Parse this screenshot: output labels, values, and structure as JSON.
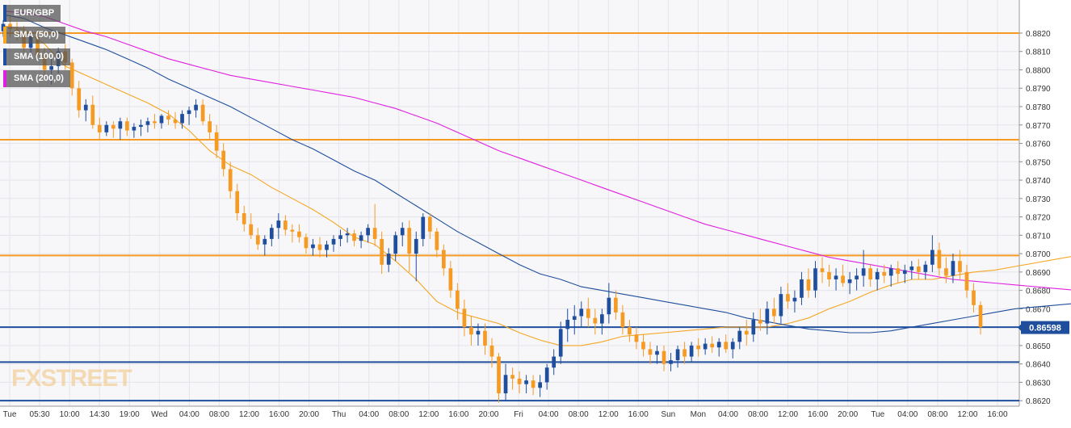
{
  "chart_data": {
    "type": "candlestick",
    "symbol": "EUR/GBP",
    "ylim": [
      0.8617,
      0.8838
    ],
    "y_ticks": [
      "0.8620",
      "0.8630",
      "0.8640",
      "0.8650",
      "0.8660",
      "0.8670",
      "0.8680",
      "0.8690",
      "0.8700",
      "0.8710",
      "0.8720",
      "0.8730",
      "0.8740",
      "0.8750",
      "0.8760",
      "0.8770",
      "0.8780",
      "0.8790",
      "0.8800",
      "0.8810",
      "0.8820"
    ],
    "x_ticks": [
      "Tue",
      "05:30",
      "10:00",
      "14:30",
      "19:00",
      "Wed",
      "04:00",
      "08:00",
      "12:00",
      "16:00",
      "20:00",
      "Thu",
      "04:00",
      "08:00",
      "12:00",
      "16:00",
      "20:00",
      "Fri",
      "04:00",
      "08:00",
      "12:00",
      "16:00",
      "Sun",
      "Mon",
      "04:00",
      "08:00",
      "12:00",
      "16:00",
      "20:00",
      "Tue",
      "04:00",
      "08:00",
      "12:00",
      "16:00"
    ],
    "current_price": "0.86598",
    "levels": [
      {
        "name": "resistance",
        "value": 0.882
      },
      {
        "name": "resistance",
        "value": 0.8762
      },
      {
        "name": "resistance",
        "value": 0.8699
      },
      {
        "name": "support",
        "value": 0.866
      },
      {
        "name": "support",
        "value": 0.8641
      },
      {
        "name": "support",
        "value": 0.862
      }
    ],
    "legend": [
      {
        "label": "EUR/GBP",
        "color": "#1f4e9c"
      },
      {
        "label": "SMA (50,0)",
        "color": "#f5a623"
      },
      {
        "label": "SMA (100,0)",
        "color": "#1f4e9c"
      },
      {
        "label": "SMA (200,0)",
        "color": "#e020e0"
      }
    ],
    "series": [
      {
        "name": "SMA (50,0)",
        "x": [
          0,
          3,
          6,
          9,
          12,
          15,
          18,
          21,
          24,
          27,
          30,
          33,
          36,
          39,
          42,
          45,
          48,
          51,
          54,
          57,
          60,
          63,
          66,
          69,
          72,
          75,
          78,
          81,
          84,
          87,
          90,
          93,
          96,
          99,
          102,
          105,
          108,
          111,
          114,
          117,
          120,
          123,
          126,
          129,
          132,
          135,
          138,
          141,
          144,
          147,
          150,
          153,
          156,
          159
        ],
        "values": [
          0.8824,
          0.8822,
          0.8814,
          0.8802,
          0.8797,
          0.8792,
          0.8787,
          0.8782,
          0.8776,
          0.8767,
          0.8756,
          0.8748,
          0.8743,
          0.8736,
          0.873,
          0.8724,
          0.8717,
          0.8709,
          0.8705,
          0.8696,
          0.8686,
          0.8674,
          0.8668,
          0.8665,
          0.8662,
          0.8657,
          0.8653,
          0.865,
          0.865,
          0.8652,
          0.8655,
          0.8656,
          0.8657,
          0.8658,
          0.8659,
          0.866,
          0.866,
          0.866,
          0.8662,
          0.8665,
          0.867,
          0.8674,
          0.8679,
          0.8683,
          0.8686,
          0.8686,
          0.8688,
          0.869,
          0.8691,
          0.8693,
          0.8695,
          0.8697,
          0.8699,
          0.8698
        ]
      },
      {
        "name": "SMA (100,0)",
        "x": [
          0,
          3,
          6,
          9,
          12,
          15,
          18,
          21,
          24,
          27,
          30,
          33,
          36,
          39,
          42,
          45,
          48,
          51,
          54,
          57,
          60,
          63,
          66,
          69,
          72,
          75,
          78,
          81,
          84,
          87,
          90,
          93,
          96,
          99,
          102,
          105,
          108,
          111,
          114,
          117,
          120,
          123,
          126,
          129,
          132,
          135,
          138,
          141,
          144,
          147,
          150,
          153,
          156,
          159
        ],
        "values": [
          0.883,
          0.8828,
          0.8823,
          0.8819,
          0.8815,
          0.8811,
          0.8806,
          0.8801,
          0.8795,
          0.879,
          0.8785,
          0.878,
          0.8774,
          0.8768,
          0.8762,
          0.8757,
          0.8751,
          0.8745,
          0.874,
          0.8733,
          0.8726,
          0.8719,
          0.8712,
          0.8706,
          0.87,
          0.8694,
          0.8689,
          0.8686,
          0.8682,
          0.868,
          0.8678,
          0.8676,
          0.8674,
          0.8672,
          0.867,
          0.8668,
          0.8665,
          0.8663,
          0.8661,
          0.8659,
          0.8658,
          0.8657,
          0.8657,
          0.8658,
          0.866,
          0.8662,
          0.8664,
          0.8666,
          0.8668,
          0.867,
          0.8671,
          0.8672,
          0.8673,
          0.8672
        ]
      },
      {
        "name": "SMA (200,0)",
        "x": [
          0,
          3,
          6,
          9,
          12,
          15,
          18,
          21,
          24,
          27,
          30,
          33,
          36,
          39,
          42,
          45,
          48,
          51,
          54,
          57,
          60,
          63,
          66,
          69,
          72,
          75,
          78,
          81,
          84,
          87,
          90,
          93,
          96,
          99,
          102,
          105,
          108,
          111,
          114,
          117,
          120,
          123,
          126,
          129,
          132,
          135,
          138,
          141,
          144,
          147,
          150,
          153,
          156,
          159
        ],
        "values": [
          0.8832,
          0.8831,
          0.8829,
          0.8825,
          0.8821,
          0.8818,
          0.8814,
          0.881,
          0.8806,
          0.8803,
          0.88,
          0.8797,
          0.8795,
          0.8793,
          0.8791,
          0.8789,
          0.8787,
          0.8785,
          0.8782,
          0.8779,
          0.8775,
          0.8771,
          0.8766,
          0.8761,
          0.8756,
          0.8752,
          0.8748,
          0.8744,
          0.874,
          0.8736,
          0.8732,
          0.8728,
          0.8724,
          0.872,
          0.8716,
          0.8713,
          0.871,
          0.8707,
          0.8704,
          0.8701,
          0.8698,
          0.8696,
          0.8694,
          0.8692,
          0.869,
          0.8688,
          0.8686,
          0.8685,
          0.8684,
          0.8683,
          0.8682,
          0.8681,
          0.868,
          0.8679
        ]
      }
    ],
    "candles": [
      [
        0.8821,
        0.8827,
        0.8818,
        0.8825
      ],
      [
        0.8825,
        0.8829,
        0.8818,
        0.8822
      ],
      [
        0.8822,
        0.8826,
        0.8816,
        0.882
      ],
      [
        0.882,
        0.8824,
        0.881,
        0.8812
      ],
      [
        0.8812,
        0.882,
        0.8808,
        0.8818
      ],
      [
        0.8818,
        0.8822,
        0.8806,
        0.8808
      ],
      [
        0.8808,
        0.8812,
        0.8796,
        0.88
      ],
      [
        0.88,
        0.8806,
        0.8792,
        0.8802
      ],
      [
        0.8802,
        0.8812,
        0.8798,
        0.881
      ],
      [
        0.881,
        0.8814,
        0.88,
        0.8804
      ],
      [
        0.8804,
        0.8806,
        0.8786,
        0.879
      ],
      [
        0.879,
        0.8794,
        0.8774,
        0.8778
      ],
      [
        0.8778,
        0.8784,
        0.8772,
        0.8781
      ],
      [
        0.8781,
        0.8786,
        0.8768,
        0.877
      ],
      [
        0.877,
        0.8774,
        0.8762,
        0.8766
      ],
      [
        0.8766,
        0.8772,
        0.8764,
        0.877
      ],
      [
        0.877,
        0.8772,
        0.8763,
        0.8768
      ],
      [
        0.8768,
        0.8774,
        0.8762,
        0.8772
      ],
      [
        0.8772,
        0.8774,
        0.8764,
        0.8767
      ],
      [
        0.8767,
        0.8771,
        0.8763,
        0.8769
      ],
      [
        0.8769,
        0.8773,
        0.8764,
        0.877
      ],
      [
        0.877,
        0.8774,
        0.8766,
        0.8772
      ],
      [
        0.8772,
        0.8776,
        0.8768,
        0.8771
      ],
      [
        0.8771,
        0.8776,
        0.8768,
        0.8775
      ],
      [
        0.8775,
        0.8778,
        0.877,
        0.8773
      ],
      [
        0.8773,
        0.8777,
        0.8768,
        0.8771
      ],
      [
        0.8771,
        0.8778,
        0.8768,
        0.8776
      ],
      [
        0.8776,
        0.878,
        0.877,
        0.8778
      ],
      [
        0.8778,
        0.8784,
        0.8774,
        0.8781
      ],
      [
        0.8781,
        0.8784,
        0.877,
        0.8772
      ],
      [
        0.8772,
        0.8776,
        0.8762,
        0.8766
      ],
      [
        0.8766,
        0.877,
        0.8752,
        0.8756
      ],
      [
        0.8756,
        0.876,
        0.8742,
        0.8746
      ],
      [
        0.8746,
        0.875,
        0.873,
        0.8734
      ],
      [
        0.8734,
        0.8738,
        0.8718,
        0.8722
      ],
      [
        0.8722,
        0.8726,
        0.8712,
        0.8716
      ],
      [
        0.8716,
        0.8722,
        0.8708,
        0.871
      ],
      [
        0.871,
        0.8714,
        0.8702,
        0.8705
      ],
      [
        0.8705,
        0.871,
        0.8699,
        0.8708
      ],
      [
        0.8708,
        0.8716,
        0.8704,
        0.8714
      ],
      [
        0.8714,
        0.8722,
        0.8708,
        0.8718
      ],
      [
        0.8718,
        0.8721,
        0.871,
        0.8713
      ],
      [
        0.8713,
        0.8716,
        0.8706,
        0.8712
      ],
      [
        0.8712,
        0.8716,
        0.8706,
        0.8709
      ],
      [
        0.8709,
        0.8711,
        0.87,
        0.8703
      ],
      [
        0.8703,
        0.8708,
        0.8699,
        0.8705
      ],
      [
        0.8705,
        0.8709,
        0.8698,
        0.8702
      ],
      [
        0.8702,
        0.8707,
        0.8698,
        0.8705
      ],
      [
        0.8705,
        0.871,
        0.8701,
        0.8708
      ],
      [
        0.8708,
        0.8713,
        0.8704,
        0.871
      ],
      [
        0.871,
        0.8714,
        0.8706,
        0.8711
      ],
      [
        0.8711,
        0.8713,
        0.8704,
        0.8707
      ],
      [
        0.8707,
        0.8712,
        0.8703,
        0.871
      ],
      [
        0.871,
        0.8716,
        0.8706,
        0.8714
      ],
      [
        0.8714,
        0.8727,
        0.8704,
        0.8708
      ],
      [
        0.8708,
        0.8712,
        0.8689,
        0.8694
      ],
      [
        0.8694,
        0.8703,
        0.869,
        0.87
      ],
      [
        0.87,
        0.8712,
        0.8696,
        0.871
      ],
      [
        0.871,
        0.8717,
        0.8704,
        0.8714
      ],
      [
        0.8714,
        0.8718,
        0.869,
        0.87
      ],
      [
        0.87,
        0.8712,
        0.8685,
        0.8708
      ],
      [
        0.8708,
        0.8722,
        0.8704,
        0.872
      ],
      [
        0.872,
        0.8722,
        0.8708,
        0.8712
      ],
      [
        0.8712,
        0.8714,
        0.8698,
        0.8702
      ],
      [
        0.8702,
        0.8705,
        0.8688,
        0.8692
      ],
      [
        0.8692,
        0.8696,
        0.8676,
        0.868
      ],
      [
        0.868,
        0.8684,
        0.8664,
        0.867
      ],
      [
        0.867,
        0.8675,
        0.8655,
        0.866
      ],
      [
        0.866,
        0.8666,
        0.865,
        0.8656
      ],
      [
        0.8656,
        0.8662,
        0.865,
        0.8658
      ],
      [
        0.8658,
        0.8662,
        0.8645,
        0.865
      ],
      [
        0.865,
        0.8654,
        0.8638,
        0.8644
      ],
      [
        0.8644,
        0.8646,
        0.8619,
        0.8624
      ],
      [
        0.8624,
        0.864,
        0.862,
        0.8634
      ],
      [
        0.8634,
        0.8638,
        0.8626,
        0.8632
      ],
      [
        0.8632,
        0.8636,
        0.8624,
        0.8629
      ],
      [
        0.8629,
        0.8634,
        0.8624,
        0.8631
      ],
      [
        0.8631,
        0.8634,
        0.8623,
        0.8627
      ],
      [
        0.8627,
        0.8634,
        0.8622,
        0.863
      ],
      [
        0.863,
        0.864,
        0.8626,
        0.8638
      ],
      [
        0.8638,
        0.8648,
        0.8634,
        0.8644
      ],
      [
        0.8644,
        0.8663,
        0.864,
        0.8659
      ],
      [
        0.8659,
        0.867,
        0.8652,
        0.8664
      ],
      [
        0.8664,
        0.8672,
        0.8656,
        0.8666
      ],
      [
        0.8666,
        0.8674,
        0.866,
        0.867
      ],
      [
        0.867,
        0.8676,
        0.866,
        0.8665
      ],
      [
        0.8665,
        0.867,
        0.8656,
        0.8662
      ],
      [
        0.8662,
        0.867,
        0.8656,
        0.8667
      ],
      [
        0.8667,
        0.8684,
        0.8662,
        0.8676
      ],
      [
        0.8676,
        0.868,
        0.8664,
        0.8668
      ],
      [
        0.8668,
        0.8672,
        0.8656,
        0.866
      ],
      [
        0.866,
        0.8664,
        0.8652,
        0.8656
      ],
      [
        0.8656,
        0.866,
        0.8648,
        0.8652
      ],
      [
        0.8652,
        0.8656,
        0.8644,
        0.8648
      ],
      [
        0.8648,
        0.8652,
        0.864,
        0.8645
      ],
      [
        0.8645,
        0.865,
        0.864,
        0.8647
      ],
      [
        0.8647,
        0.865,
        0.8636,
        0.864
      ],
      [
        0.864,
        0.8646,
        0.8636,
        0.8642
      ],
      [
        0.8642,
        0.865,
        0.8638,
        0.8648
      ],
      [
        0.8648,
        0.8652,
        0.864,
        0.8644
      ],
      [
        0.8644,
        0.8652,
        0.8641,
        0.865
      ],
      [
        0.865,
        0.8654,
        0.8644,
        0.8648
      ],
      [
        0.8648,
        0.8654,
        0.8645,
        0.8651
      ],
      [
        0.8651,
        0.8655,
        0.8646,
        0.8649
      ],
      [
        0.8649,
        0.8654,
        0.8644,
        0.8652
      ],
      [
        0.8652,
        0.8656,
        0.8646,
        0.8648
      ],
      [
        0.8648,
        0.8654,
        0.8643,
        0.8652
      ],
      [
        0.8652,
        0.866,
        0.8648,
        0.8658
      ],
      [
        0.8658,
        0.8664,
        0.865,
        0.8656
      ],
      [
        0.8656,
        0.8668,
        0.8652,
        0.8664
      ],
      [
        0.8664,
        0.867,
        0.8658,
        0.8662
      ],
      [
        0.8662,
        0.8674,
        0.8656,
        0.867
      ],
      [
        0.867,
        0.8676,
        0.8662,
        0.8666
      ],
      [
        0.8666,
        0.8682,
        0.8662,
        0.8678
      ],
      [
        0.8678,
        0.8684,
        0.867,
        0.8674
      ],
      [
        0.8674,
        0.868,
        0.8668,
        0.8676
      ],
      [
        0.8676,
        0.869,
        0.8672,
        0.8686
      ],
      [
        0.8686,
        0.8692,
        0.8676,
        0.868
      ],
      [
        0.868,
        0.8696,
        0.8676,
        0.8692
      ],
      [
        0.8692,
        0.8698,
        0.8684,
        0.869
      ],
      [
        0.869,
        0.8694,
        0.8682,
        0.8686
      ],
      [
        0.8686,
        0.8692,
        0.868,
        0.8688
      ],
      [
        0.8688,
        0.8694,
        0.8682,
        0.8684
      ],
      [
        0.8684,
        0.869,
        0.8678,
        0.8686
      ],
      [
        0.8686,
        0.8692,
        0.868,
        0.8688
      ],
      [
        0.8688,
        0.8702,
        0.8682,
        0.8692
      ],
      [
        0.8692,
        0.8694,
        0.8682,
        0.8686
      ],
      [
        0.8686,
        0.8692,
        0.868,
        0.869
      ],
      [
        0.869,
        0.8694,
        0.8684,
        0.8688
      ],
      [
        0.8688,
        0.8694,
        0.8682,
        0.8692
      ],
      [
        0.8692,
        0.8696,
        0.8684,
        0.8689
      ],
      [
        0.8689,
        0.8694,
        0.8684,
        0.8691
      ],
      [
        0.8691,
        0.8696,
        0.8686,
        0.8693
      ],
      [
        0.8693,
        0.8697,
        0.8686,
        0.869
      ],
      [
        0.869,
        0.8696,
        0.8686,
        0.8694
      ],
      [
        0.8694,
        0.871,
        0.869,
        0.8702
      ],
      [
        0.8702,
        0.8706,
        0.8688,
        0.8692
      ],
      [
        0.8692,
        0.8698,
        0.8684,
        0.8688
      ],
      [
        0.8688,
        0.87,
        0.8684,
        0.8696
      ],
      [
        0.8696,
        0.8702,
        0.8686,
        0.869
      ],
      [
        0.869,
        0.8694,
        0.8676,
        0.868
      ],
      [
        0.868,
        0.8684,
        0.8668,
        0.8672
      ],
      [
        0.8672,
        0.8674,
        0.8656,
        0.866
      ]
    ]
  },
  "watermark": "FXSTREET",
  "colors": {
    "bull": "#1f4e9c",
    "bear": "#f59a23",
    "resistance": "#f59a23",
    "support": "#1f4e9c",
    "sma50": "#f5a623",
    "sma100": "#1f4e9c",
    "sma200": "#e020e0",
    "price_tag": "#1f4e9c"
  }
}
